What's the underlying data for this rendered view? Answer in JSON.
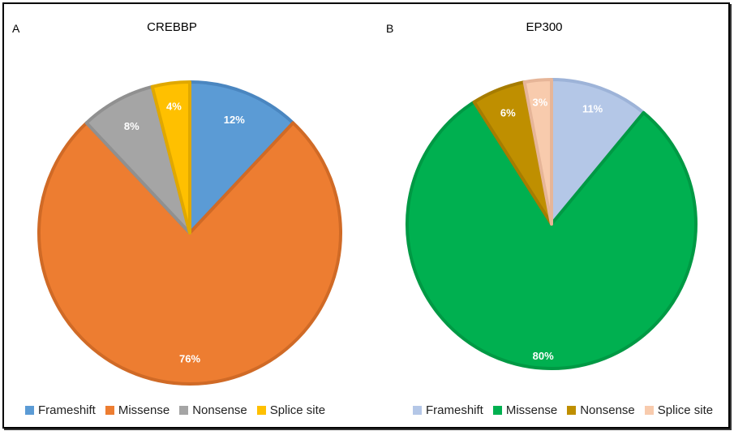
{
  "chart_data": [
    {
      "type": "pie",
      "panel": "A",
      "title": "CREBBP",
      "slices": [
        {
          "name": "Frameshift",
          "value": 12,
          "label": "12%",
          "color": "#5B9BD5",
          "stroke": "#4A86C0"
        },
        {
          "name": "Missense",
          "value": 76,
          "label": "76%",
          "color": "#ED7D31",
          "stroke": "#D06A26"
        },
        {
          "name": "Nonsense",
          "value": 8,
          "label": "8%",
          "color": "#A5A5A5",
          "stroke": "#909090"
        },
        {
          "name": "Splice site",
          "value": 4,
          "label": "4%",
          "color": "#FFC000",
          "stroke": "#E0A800"
        }
      ],
      "legend_position": "bottom"
    },
    {
      "type": "pie",
      "panel": "B",
      "title": "EP300",
      "slices": [
        {
          "name": "Frameshift",
          "value": 11,
          "label": "11%",
          "color": "#B4C7E7",
          "stroke": "#9DB3D8"
        },
        {
          "name": "Missense",
          "value": 80,
          "label": "80%",
          "color": "#00B050",
          "stroke": "#009944"
        },
        {
          "name": "Nonsense",
          "value": 6,
          "label": "6%",
          "color": "#BF8F00",
          "stroke": "#A67C00"
        },
        {
          "name": "Splice site",
          "value": 3,
          "label": "3%",
          "color": "#F8CBAD",
          "stroke": "#E6B598"
        }
      ],
      "legend_position": "bottom"
    }
  ]
}
